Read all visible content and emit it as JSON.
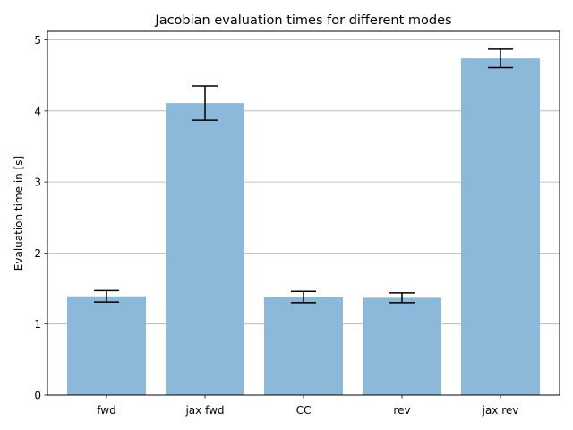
{
  "chart_data": {
    "type": "bar",
    "title": "Jacobian evaluation times for different modes",
    "xlabel": "",
    "ylabel": "Evaluation time in [s]",
    "categories": [
      "fwd",
      "jax fwd",
      "CC",
      "rev",
      "jax rev"
    ],
    "values": [
      1.39,
      4.11,
      1.38,
      1.37,
      4.74
    ],
    "errors": [
      0.08,
      0.24,
      0.08,
      0.07,
      0.13
    ],
    "ylim": [
      0,
      5.12
    ],
    "yticks": [
      0,
      1,
      2,
      3,
      4,
      5
    ],
    "grid": "y",
    "bar_color": "#8cb9da",
    "error_color": "#000000",
    "grid_color": "#b0b0b0"
  }
}
